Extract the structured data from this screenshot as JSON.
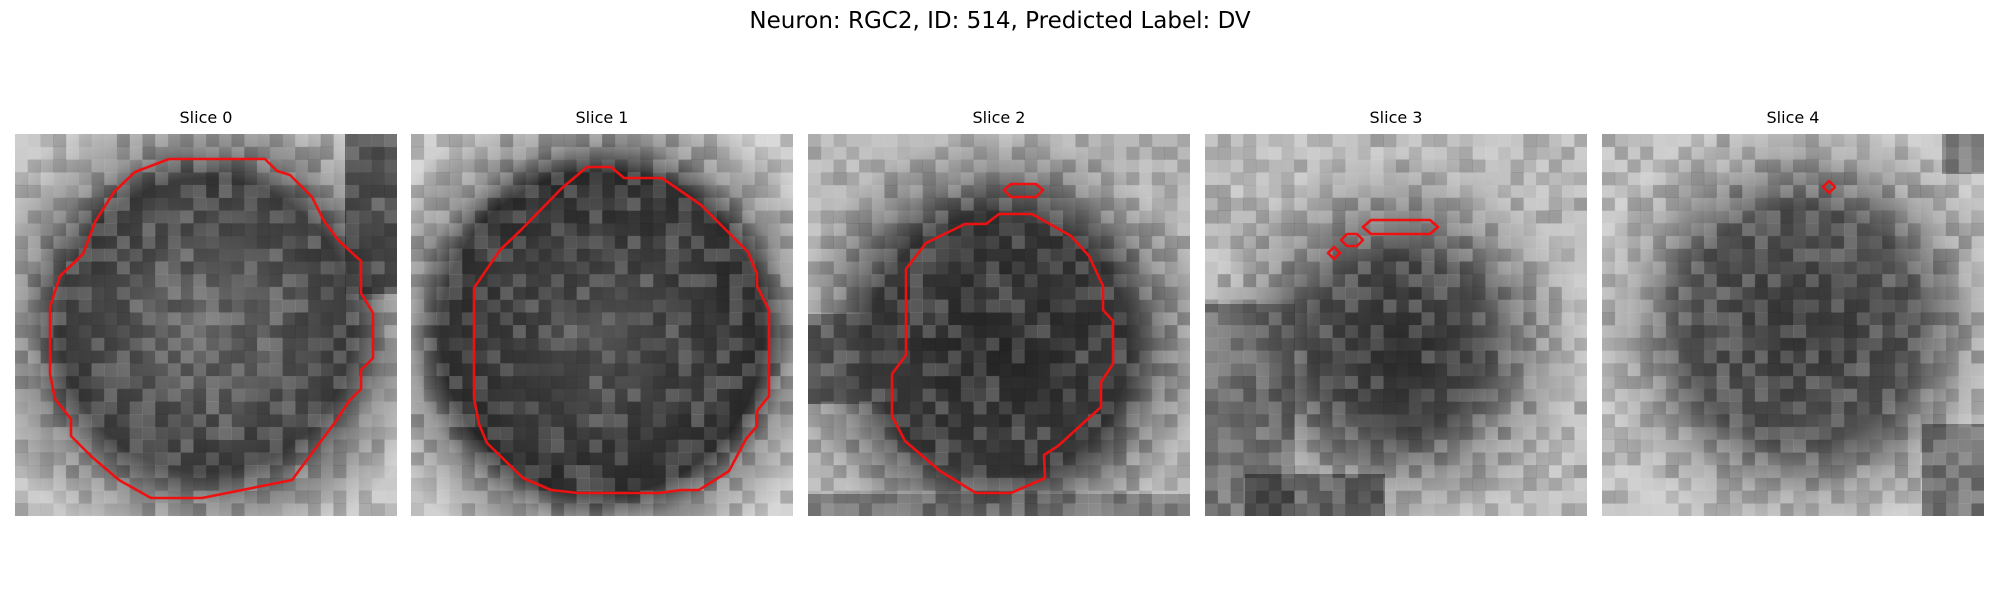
{
  "figure": {
    "title": "Neuron: RGC2, ID: 514, Predicted Label: DV",
    "contour_color": "#ee1111"
  },
  "slices": [
    {
      "title": "Slice 0"
    },
    {
      "title": "Slice 1"
    },
    {
      "title": "Slice 2"
    },
    {
      "title": "Slice 3"
    },
    {
      "title": "Slice 4"
    }
  ]
}
